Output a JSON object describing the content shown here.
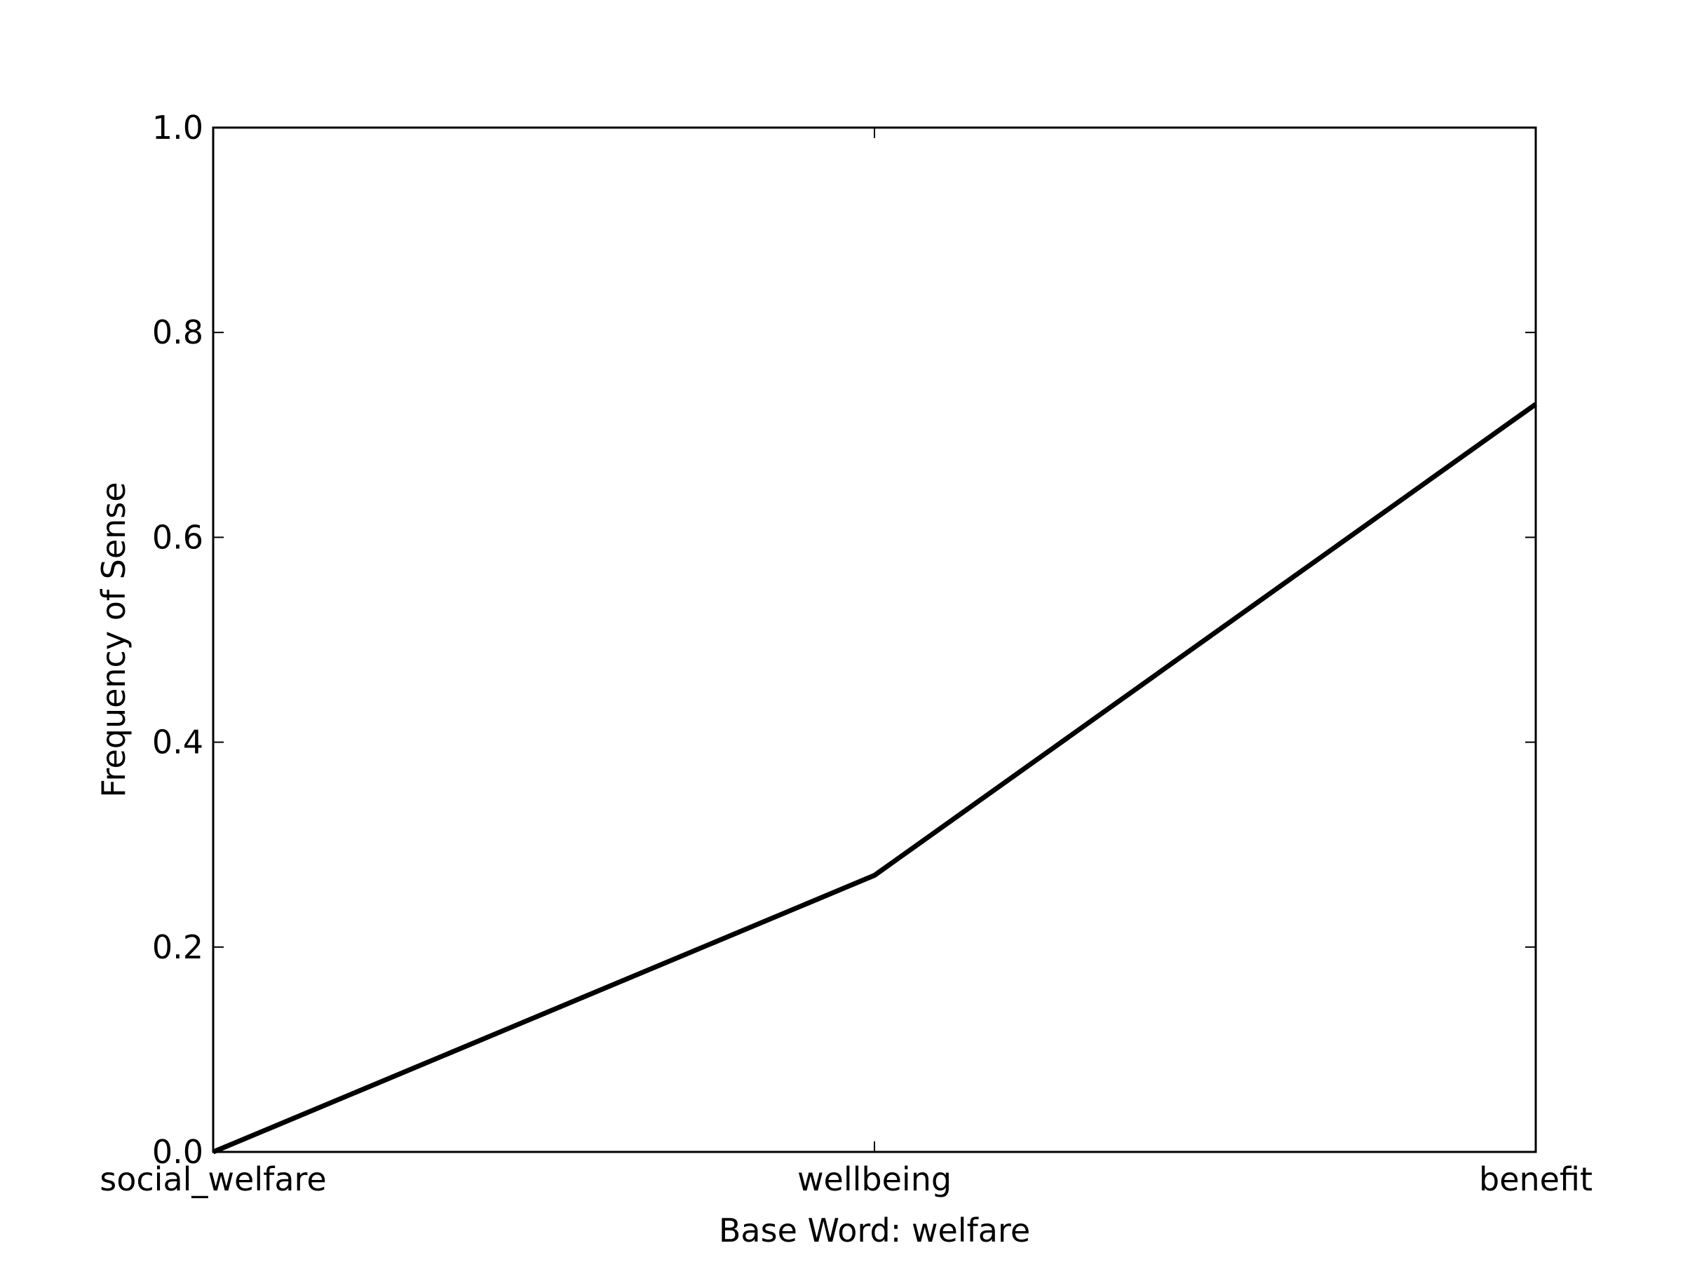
{
  "chart_data": {
    "type": "line",
    "categories": [
      "social_welfare",
      "wellbeing",
      "benefit"
    ],
    "series": [
      {
        "values": [
          0.0,
          0.27,
          0.73
        ],
        "color": "#000000"
      }
    ],
    "title": "",
    "xlabel": "Base Word: welfare",
    "ylabel": "Frequency of Sense",
    "ylim": [
      0.0,
      1.0
    ],
    "yticks": [
      "0.0",
      "0.2",
      "0.4",
      "0.6",
      "0.8",
      "1.0"
    ],
    "grid": false,
    "legend": "none"
  }
}
